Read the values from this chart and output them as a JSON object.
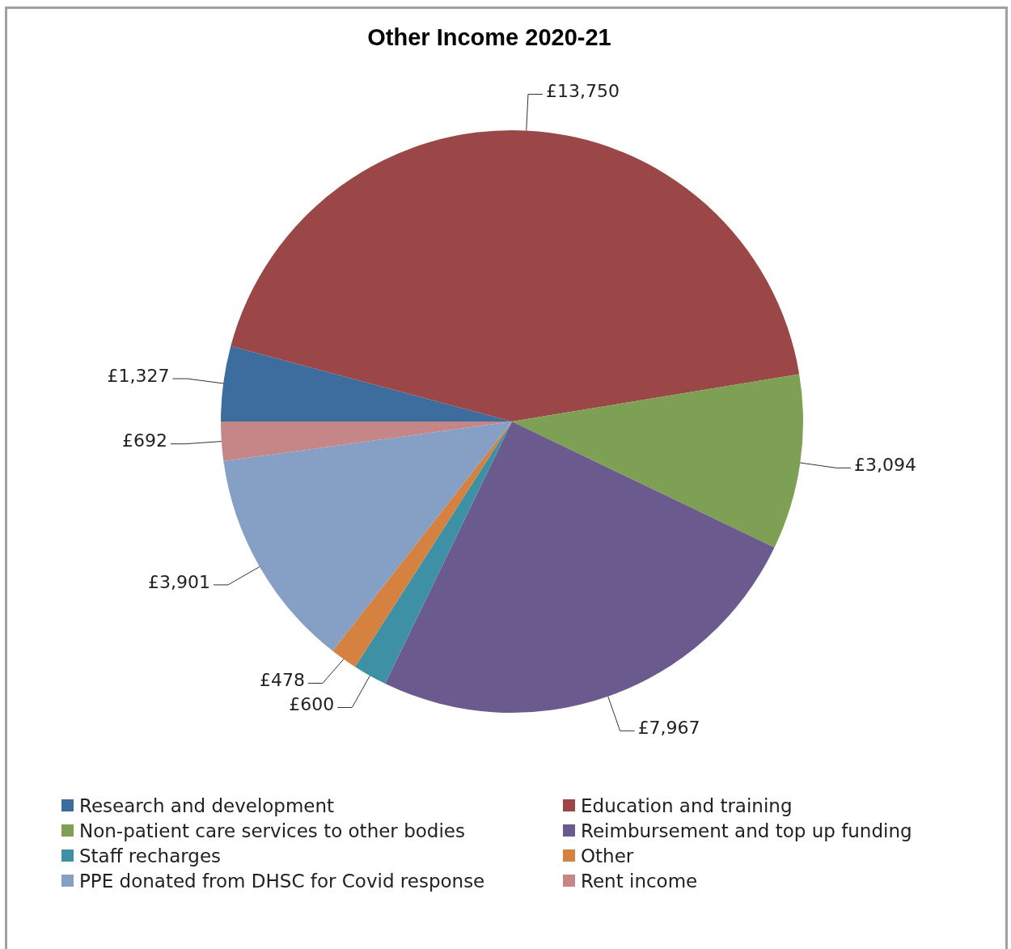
{
  "chart_data": {
    "type": "pie",
    "title": "Other Income 2020-21",
    "categories": [
      "Research and development",
      "Education and training",
      "Non-patient care services to other bodies",
      "Reimbursement and top up funding",
      "Staff recharges",
      "Other",
      "PPE donated from DHSC for Covid response",
      "Rent income"
    ],
    "values": [
      1327,
      13750,
      3094,
      7967,
      600,
      478,
      3901,
      692
    ],
    "value_labels": [
      "£1,327",
      "£13,750",
      "£3,094",
      "£7,967",
      "£600",
      "£478",
      "£3,901",
      "£692"
    ],
    "colors": [
      "#3d6d9e",
      "#9b4747",
      "#7ea055",
      "#6b5a8e",
      "#3e91a5",
      "#d5813f",
      "#85a0c4",
      "#c48686"
    ],
    "legend": "bottom"
  }
}
